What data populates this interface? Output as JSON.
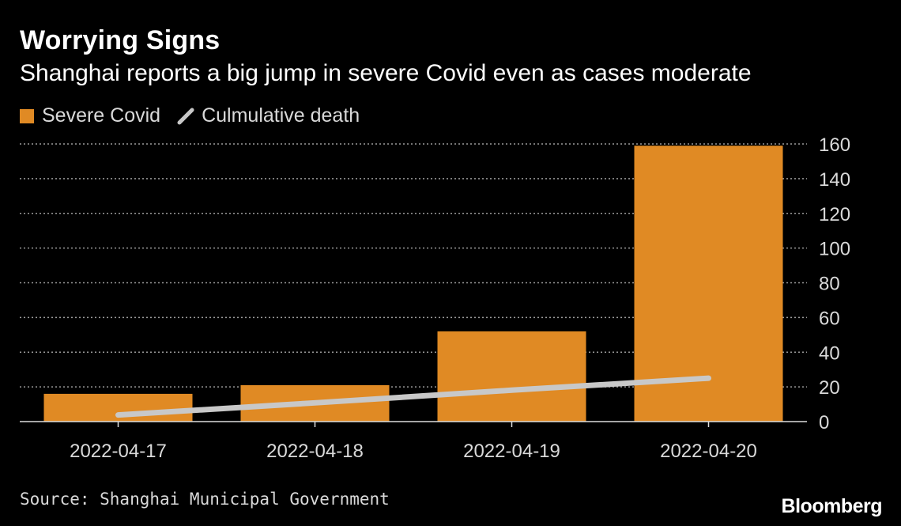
{
  "header": {
    "title": "Worrying Signs",
    "subtitle": "Shanghai reports a big jump in severe Covid even as cases moderate"
  },
  "legend": {
    "items": [
      {
        "label": "Severe Covid",
        "color": "#e08a24",
        "icon": "square-swatch"
      },
      {
        "label": "Culmulative death",
        "color": "#c8c8c8",
        "icon": "slash-line"
      }
    ]
  },
  "chart_data": {
    "type": "bar",
    "categories": [
      "2022-04-17",
      "2022-04-18",
      "2022-04-19",
      "2022-04-20"
    ],
    "series": [
      {
        "name": "Severe Covid",
        "type": "bar",
        "color": "#e08a24",
        "values": [
          16,
          21,
          52,
          159
        ]
      },
      {
        "name": "Culmulative death",
        "type": "line",
        "color": "#c8c8c8",
        "values": [
          3.8,
          10.8,
          18.1,
          25
        ]
      }
    ],
    "ylim": [
      0,
      160
    ],
    "yticks": [
      0,
      20,
      40,
      60,
      80,
      100,
      120,
      140,
      160
    ],
    "y_axis_side": "right",
    "grid": true,
    "grid_style": "dotted",
    "legend_position": "top-left"
  },
  "footer": {
    "source": "Source: Shanghai Municipal Government",
    "brand": "Bloomberg"
  }
}
